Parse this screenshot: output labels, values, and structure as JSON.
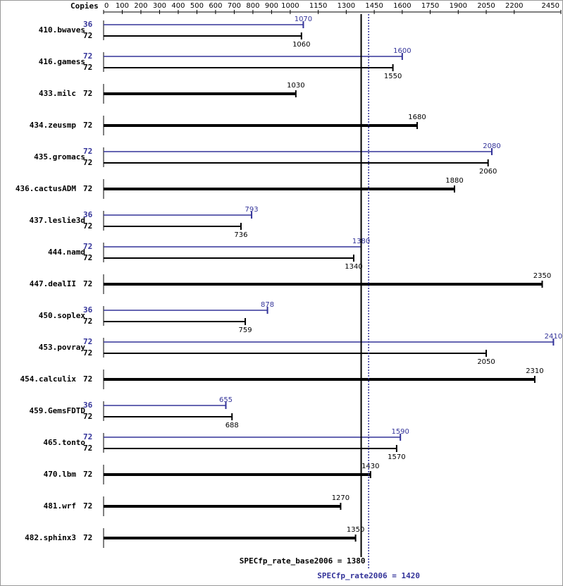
{
  "chart_data": {
    "type": "bar",
    "orientation": "horizontal",
    "copies_header": "Copies",
    "categories": [
      "410.bwaves",
      "416.gamess",
      "433.milc",
      "434.zeusmp",
      "435.gromacs",
      "436.cactusADM",
      "437.leslie3d",
      "444.namd",
      "447.dealII",
      "450.soplex",
      "453.povray",
      "454.calculix",
      "459.GemsFDTD",
      "465.tonto",
      "470.lbm",
      "481.wrf",
      "482.sphinx3"
    ],
    "series": [
      {
        "color": "#000000",
        "copies": [
          72,
          72,
          72,
          72,
          72,
          72,
          72,
          72,
          72,
          72,
          72,
          72,
          72,
          72,
          72,
          72,
          72
        ],
        "values": [
          1060,
          1550,
          1030,
          1680,
          2060,
          1880,
          736,
          1340,
          2350,
          759,
          2050,
          2310,
          688,
          1570,
          1430,
          1270,
          1350
        ]
      },
      {
        "color": "#333399",
        "copies": [
          36,
          72,
          null,
          null,
          72,
          null,
          36,
          72,
          null,
          36,
          72,
          null,
          36,
          72,
          null,
          null,
          null
        ],
        "values": [
          1070,
          1600,
          null,
          null,
          2080,
          null,
          793,
          1380,
          null,
          878,
          2410,
          null,
          655,
          1590,
          null,
          null,
          null
        ]
      }
    ],
    "xlim": [
      0,
      2450
    ],
    "xticks": [
      0,
      100,
      200,
      300,
      400,
      500,
      600,
      700,
      800,
      900,
      1000,
      1150,
      1300,
      1450,
      1600,
      1750,
      1900,
      2050,
      2200,
      2450
    ],
    "reference_lines": [
      {
        "label": "SPECfp_rate_base2006 = 1380",
        "value": 1380,
        "color": "#000000",
        "style": "solid"
      },
      {
        "label": "SPECfp_rate2006 = 1420",
        "value": 1420,
        "color": "#333399",
        "style": "dotted"
      }
    ]
  }
}
